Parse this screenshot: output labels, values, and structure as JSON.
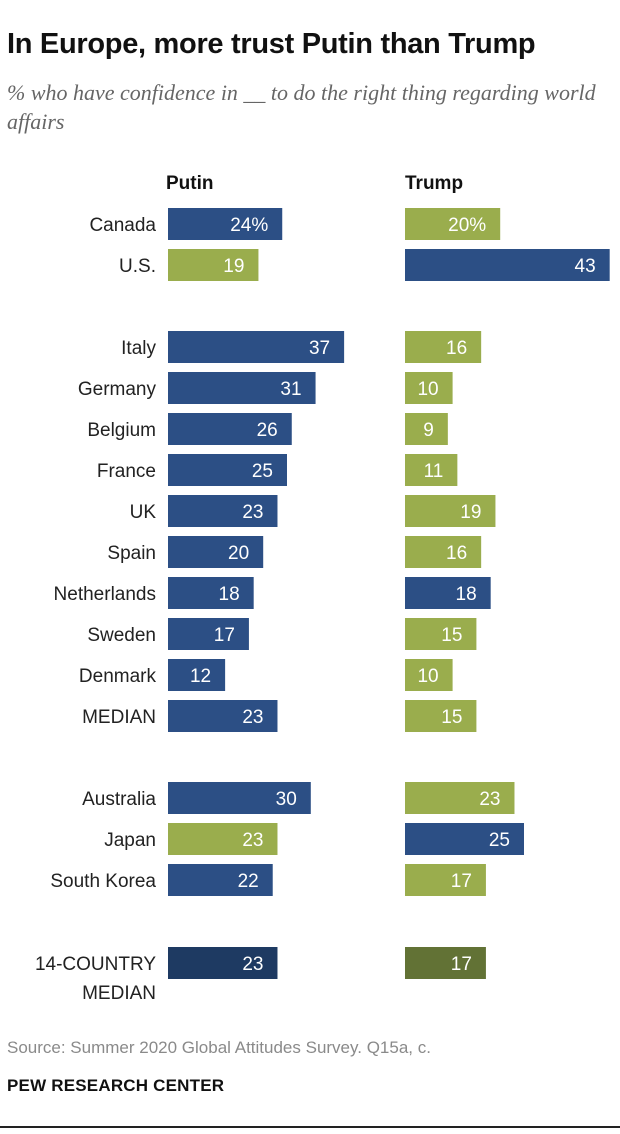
{
  "chart_data": {
    "type": "bar",
    "title": "In Europe, more trust Putin than Trump",
    "subtitle": "% who have confidence in __ to do the right thing regarding world affairs",
    "series_labels": [
      "Putin",
      "Trump"
    ],
    "colors": {
      "blue": "#2c4f85",
      "olive": "#9aad4d",
      "dark_blue": "#1e3a62",
      "dark_olive": "#627235"
    },
    "groups": [
      {
        "rows": [
          {
            "label": [
              "Canada"
            ],
            "putin": 24,
            "trump": 20,
            "putin_text": "24%",
            "trump_text": "20%",
            "putin_color": "blue",
            "trump_color": "olive"
          },
          {
            "label": [
              "U.S."
            ],
            "putin": 19,
            "trump": 43,
            "putin_text": "19",
            "trump_text": "43",
            "putin_color": "olive",
            "trump_color": "blue"
          }
        ]
      },
      {
        "rows": [
          {
            "label": [
              "Italy"
            ],
            "putin": 37,
            "trump": 16,
            "putin_text": "37",
            "trump_text": "16",
            "putin_color": "blue",
            "trump_color": "olive"
          },
          {
            "label": [
              "Germany"
            ],
            "putin": 31,
            "trump": 10,
            "putin_text": "31",
            "trump_text": "10",
            "putin_color": "blue",
            "trump_color": "olive"
          },
          {
            "label": [
              "Belgium"
            ],
            "putin": 26,
            "trump": 9,
            "putin_text": "26",
            "trump_text": "9",
            "putin_color": "blue",
            "trump_color": "olive"
          },
          {
            "label": [
              "France"
            ],
            "putin": 25,
            "trump": 11,
            "putin_text": "25",
            "trump_text": "11",
            "putin_color": "blue",
            "trump_color": "olive"
          },
          {
            "label": [
              "UK"
            ],
            "putin": 23,
            "trump": 19,
            "putin_text": "23",
            "trump_text": "19",
            "putin_color": "blue",
            "trump_color": "olive"
          },
          {
            "label": [
              "Spain"
            ],
            "putin": 20,
            "trump": 16,
            "putin_text": "20",
            "trump_text": "16",
            "putin_color": "blue",
            "trump_color": "olive"
          },
          {
            "label": [
              "Netherlands"
            ],
            "putin": 18,
            "trump": 18,
            "putin_text": "18",
            "trump_text": "18",
            "putin_color": "blue",
            "trump_color": "blue"
          },
          {
            "label": [
              "Sweden"
            ],
            "putin": 17,
            "trump": 15,
            "putin_text": "17",
            "trump_text": "15",
            "putin_color": "blue",
            "trump_color": "olive"
          },
          {
            "label": [
              "Denmark"
            ],
            "putin": 12,
            "trump": 10,
            "putin_text": "12",
            "trump_text": "10",
            "putin_color": "blue",
            "trump_color": "olive"
          },
          {
            "label": [
              "MEDIAN"
            ],
            "putin": 23,
            "trump": 15,
            "putin_text": "23",
            "trump_text": "15",
            "putin_color": "blue",
            "trump_color": "olive"
          }
        ]
      },
      {
        "rows": [
          {
            "label": [
              "Australia"
            ],
            "putin": 30,
            "trump": 23,
            "putin_text": "30",
            "trump_text": "23",
            "putin_color": "blue",
            "trump_color": "olive"
          },
          {
            "label": [
              "Japan"
            ],
            "putin": 23,
            "trump": 25,
            "putin_text": "23",
            "trump_text": "25",
            "putin_color": "olive",
            "trump_color": "blue"
          },
          {
            "label": [
              "South Korea"
            ],
            "putin": 22,
            "trump": 17,
            "putin_text": "22",
            "trump_text": "17",
            "putin_color": "blue",
            "trump_color": "olive"
          }
        ]
      },
      {
        "rows": [
          {
            "label": [
              "14-COUNTRY",
              "MEDIAN"
            ],
            "putin": 23,
            "trump": 17,
            "putin_text": "23",
            "trump_text": "17",
            "putin_color": "dark_blue",
            "trump_color": "dark_olive"
          }
        ]
      }
    ],
    "source": "Source: Summer 2020 Global Attitudes Survey. Q15a, c.",
    "brand": "PEW RESEARCH CENTER"
  }
}
